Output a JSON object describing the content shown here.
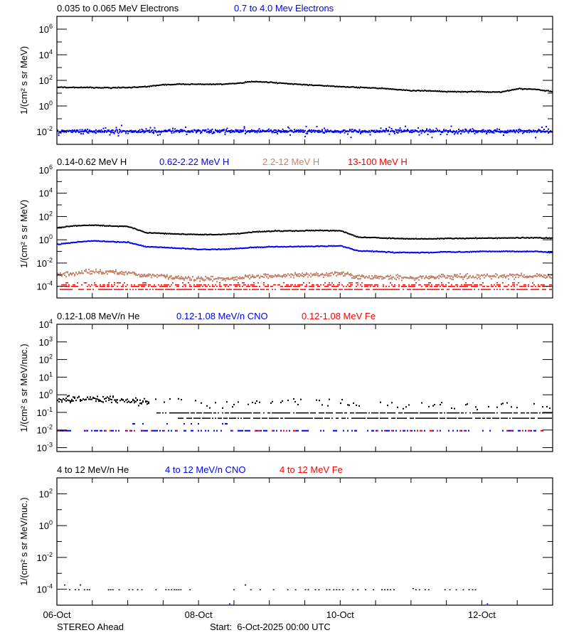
{
  "chart_data": [
    {
      "type": "scatter",
      "title_entries": [
        {
          "text": "0.035 to 0.065 MeV Electrons",
          "color": "#000000"
        },
        {
          "text": "0.7 to 4.0 Mev Electrons",
          "color": "#0000ff"
        }
      ],
      "ylabel": "1/(cm² s sr MeV)",
      "yscale": "log",
      "ylim": [
        0.001,
        10000000
      ],
      "ytick_exponents": [
        6,
        4,
        2,
        0,
        -2
      ],
      "x_sample_step_days": 0.25,
      "series": [
        {
          "name": "0.035 to 0.065 MeV Electrons",
          "color": "#000000",
          "values": [
            28,
            28,
            27,
            26,
            28,
            32,
            45,
            50,
            50,
            48,
            55,
            80,
            70,
            55,
            45,
            38,
            32,
            28,
            25,
            20,
            16,
            15,
            13,
            13,
            13,
            12,
            22,
            20,
            13
          ]
        },
        {
          "name": "0.7 to 4.0 Mev Electrons",
          "color": "#0000ff",
          "values": [
            0.012,
            0.012,
            0.012,
            0.012,
            0.012,
            0.012,
            0.012,
            0.012,
            0.012,
            0.012,
            0.012,
            0.012,
            0.012,
            0.012,
            0.012,
            0.012,
            0.012,
            0.012,
            0.012,
            0.012,
            0.012,
            0.012,
            0.012,
            0.012,
            0.012,
            0.012,
            0.012,
            0.012,
            0.012
          ]
        }
      ]
    },
    {
      "type": "scatter",
      "title_entries": [
        {
          "text": "0.14-0.62 MeV H",
          "color": "#000000"
        },
        {
          "text": "0.62-2.22 MeV H",
          "color": "#0000ff"
        },
        {
          "text": "2.2-12 MeV H",
          "color": "#c8826a"
        },
        {
          "text": "13-100 MeV H",
          "color": "#ff0000"
        }
      ],
      "ylabel": "1/(cm² s sr MeV)",
      "yscale": "log",
      "ylim": [
        1e-05,
        1000000
      ],
      "ytick_exponents": [
        6,
        4,
        2,
        0,
        -2,
        -4
      ],
      "x_sample_step_days": 0.25,
      "series": [
        {
          "name": "0.14-0.62 MeV H",
          "color": "#000000",
          "values": [
            11,
            16,
            18,
            15,
            14,
            4,
            3.5,
            3,
            2.8,
            2.8,
            3.2,
            4.5,
            5.5,
            5.8,
            6,
            6.2,
            6,
            1.6,
            1.5,
            1.3,
            1.2,
            1.2,
            1.3,
            1.3,
            1.4,
            1.4,
            1.5,
            1.5,
            1.4
          ]
        },
        {
          "name": "0.62-2.22 MeV H",
          "color": "#0000ff",
          "values": [
            0.4,
            0.6,
            0.8,
            0.7,
            0.6,
            0.25,
            0.22,
            0.18,
            0.15,
            0.15,
            0.17,
            0.22,
            0.25,
            0.25,
            0.27,
            0.28,
            0.3,
            0.11,
            0.1,
            0.08,
            0.08,
            0.08,
            0.09,
            0.09,
            0.1,
            0.1,
            0.1,
            0.1,
            0.08
          ]
        },
        {
          "name": "2.2-12 MeV H",
          "color": "#c8826a",
          "values": [
            0.001,
            0.0015,
            0.002,
            0.0018,
            0.0016,
            0.001,
            0.0008,
            0.0006,
            0.0005,
            0.0005,
            0.0006,
            0.0008,
            0.0009,
            0.001,
            0.0011,
            0.0012,
            0.0015,
            0.0008,
            0.0007,
            0.0007,
            0.0006,
            0.0007,
            0.0007,
            0.0008,
            0.0008,
            0.0009,
            0.0009,
            0.0009,
            0.0008
          ]
        },
        {
          "name": "13-100 MeV H",
          "color": "#ff0000",
          "values": [
            0.0001,
            0.0001,
            0.0001,
            0.0001,
            0.0001,
            0.0001,
            0.0001,
            0.0001,
            0.0001,
            0.0001,
            0.0001,
            0.0001,
            0.0001,
            0.0001,
            0.0001,
            0.0001,
            0.0001,
            0.0001,
            0.0001,
            0.0001,
            0.0001,
            0.0001,
            0.0001,
            0.0001,
            0.0001,
            0.0001,
            0.0001,
            0.0001,
            0.0001
          ]
        }
      ]
    },
    {
      "type": "scatter",
      "title_entries": [
        {
          "text": "0.12-1.08 MeV/n He",
          "color": "#000000"
        },
        {
          "text": "0.12-1.08 MeV/n CNO",
          "color": "#0000ff"
        },
        {
          "text": "0.12-1.08 MeV Fe",
          "color": "#ff0000"
        }
      ],
      "ylabel": "1/(cm² s sr MeV/nuc.)",
      "yscale": "log",
      "ylim": [
        0.0006,
        10000
      ],
      "ytick_exponents": [
        4,
        3,
        2,
        1,
        0,
        -1,
        -2,
        -3
      ],
      "x_sample_step_days": 0.25,
      "series": [
        {
          "name": "0.12-1.08 MeV/n He",
          "color": "#000000",
          "values": [
            0.5,
            0.6,
            0.7,
            0.6,
            0.5,
            0.4,
            0.25,
            0.2,
            0.12,
            0.12,
            0.12,
            0.13,
            0.15,
            0.16,
            0.17,
            0.16,
            0.15,
            0.12,
            0.11,
            0.11,
            0.11,
            0.1,
            0.1,
            0.1,
            0.1,
            0.1,
            0.1,
            0.1,
            0.1
          ]
        },
        {
          "name": "0.12-1.08 MeV/n CNO",
          "color": "#0000ff",
          "values": [
            0.01,
            0.01,
            0.01,
            0.01,
            0.01,
            0.01,
            0.01,
            0.01,
            0.01,
            0.01,
            0.01,
            0.01,
            0.01,
            0.01,
            0.01,
            0.01,
            0.01,
            0.01,
            0.01,
            0.01,
            0.01,
            0.01,
            0.01,
            0.01,
            0.01,
            0.01,
            0.01,
            0.01,
            0.01
          ]
        },
        {
          "name": "0.12-1.08 MeV Fe",
          "color": "#ff0000",
          "values": [
            0.01,
            0.01,
            0.01,
            0.01,
            0.01,
            0.01,
            0.01,
            0.01,
            0.01,
            0.01,
            0.01,
            0.01,
            0.01,
            0.01,
            0.01,
            0.01,
            0.01,
            0.01,
            0.01,
            0.01,
            0.01,
            0.01,
            0.01,
            0.01,
            0.01,
            0.01,
            0.01,
            0.01,
            0.01
          ]
        }
      ]
    },
    {
      "type": "scatter",
      "title_entries": [
        {
          "text": "4 to 12 MeV/n He",
          "color": "#000000"
        },
        {
          "text": "4 to 12 MeV/n CNO",
          "color": "#0000ff"
        },
        {
          "text": "4 to 12 MeV Fe",
          "color": "#ff0000"
        }
      ],
      "ylabel": "1/(cm² s sr MeV/nuc.)",
      "yscale": "log",
      "ylim": [
        1e-05,
        1000
      ],
      "ytick_exponents": [
        2,
        0,
        -2,
        -4
      ],
      "series": [
        {
          "name": "4 to 12 MeV/n He",
          "color": "#000000",
          "points_days": [
            0.1,
            0.17,
            0.25,
            0.3,
            0.32,
            0.38,
            0.42,
            0.45,
            0.72,
            0.75,
            0.78,
            0.87,
            1.01,
            1.06,
            1.13,
            1.19,
            1.39,
            1.53,
            1.57,
            1.61,
            1.65,
            1.68,
            1.71,
            1.74,
            1.87,
            2.49,
            2.65,
            2.73,
            2.86,
            3.05,
            3.25,
            3.36,
            3.5,
            3.54,
            3.64,
            3.69,
            3.8,
            3.84,
            3.9,
            3.94,
            3.98,
            4.03,
            4.17,
            4.24,
            4.35,
            4.46,
            4.58,
            4.62,
            4.66,
            4.7,
            4.75,
            5.02,
            5.06,
            5.11,
            5.19,
            5.24,
            5.47,
            5.54,
            5.63,
            5.73,
            5.81,
            5.86,
            5.9
          ],
          "points_values": [
            0.0002,
            0.0001,
            0.0001,
            0.0001,
            0.0002,
            0.0001,
            0.0001,
            0.0001,
            0.0001,
            0.0001,
            0.0001,
            0.0001,
            0.0001,
            0.0001,
            0.0001,
            0.0001,
            0.0001,
            0.0001,
            0.0001,
            0.0001,
            0.0001,
            0.0001,
            0.0001,
            0.0001,
            0.0001,
            0.0001,
            0.0002,
            0.0001,
            0.0001,
            0.0001,
            0.0001,
            0.0001,
            0.0001,
            0.0001,
            0.0001,
            0.0001,
            0.0001,
            0.0001,
            0.0001,
            0.0001,
            0.0001,
            0.0001,
            0.0001,
            0.0001,
            0.0001,
            0.0001,
            0.0001,
            0.0001,
            0.0001,
            0.0001,
            0.0001,
            0.00012,
            0.0001,
            0.0001,
            0.0001,
            0.0001,
            0.0001,
            0.0001,
            0.0001,
            0.0001,
            0.0001,
            0.0001,
            0.0001
          ]
        },
        {
          "name": "4 to 12 MeV/n CNO",
          "color": "#0000ff",
          "points_days": [
            2.43,
            6.07
          ],
          "points_values": [
            1.3e-05,
            1.3e-05
          ]
        },
        {
          "name": "4 to 12 MeV Fe",
          "color": "#ff0000",
          "points_days": [],
          "points_values": []
        }
      ]
    }
  ],
  "x_axis": {
    "range_days": [
      0,
      7
    ],
    "tick_labels": [
      "06-Oct",
      "08-Oct",
      "10-Oct",
      "12-Oct"
    ],
    "tick_label_days": [
      0,
      2,
      4,
      6
    ]
  },
  "footer": {
    "spacecraft": "STEREO Ahead",
    "start": "Start:  6-Oct-2025 00:00 UTC"
  }
}
